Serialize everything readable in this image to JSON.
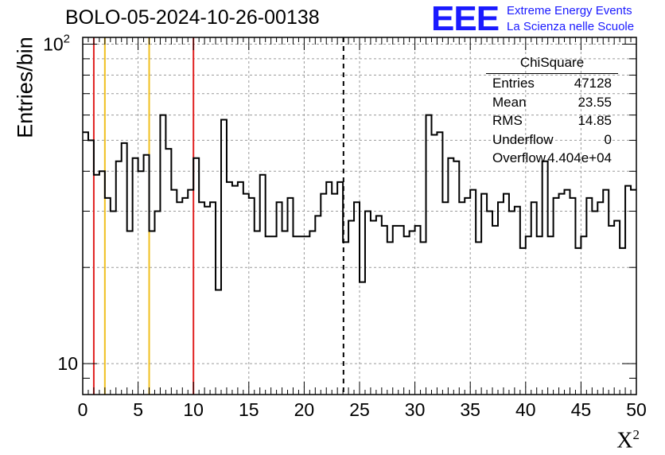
{
  "title": "BOLO-05-2024-10-26-00138",
  "logo": {
    "letters": "EEE",
    "line1": "Extreme Energy Events",
    "line2": "La Scienza nelle Scuole",
    "color": "#1a1aff"
  },
  "stats": {
    "name": "ChiSquare",
    "rows": [
      {
        "label": "Entries",
        "value": "47128"
      },
      {
        "label": "Mean",
        "value": "23.55"
      },
      {
        "label": "RMS",
        "value": "14.85"
      },
      {
        "label": "Underflow",
        "value": "0"
      },
      {
        "label": "Overflow",
        "value": "4.404e+04"
      }
    ]
  },
  "chart_data": {
    "type": "histogram",
    "title": "BOLO-05-2024-10-26-00138",
    "xlabel": "X",
    "xlabel_superscript": "2",
    "ylabel": "Entries/bin",
    "xlim": [
      0,
      50
    ],
    "ylim": [
      8,
      105
    ],
    "y_scale": "log",
    "grid": true,
    "bin_width": 0.5,
    "x_ticks": [
      "0",
      "5",
      "10",
      "15",
      "20",
      "25",
      "30",
      "35",
      "40",
      "45",
      "50"
    ],
    "y_ticks": [
      {
        "value": 10,
        "label": "10"
      },
      {
        "value": 100,
        "label": "10",
        "exponent": "2"
      }
    ],
    "values": [
      53,
      50,
      39,
      40,
      33,
      30,
      43,
      49,
      26,
      44,
      40,
      45,
      26,
      30,
      60,
      47,
      35,
      32,
      33,
      35,
      44,
      32,
      31,
      32,
      17,
      58,
      37,
      36,
      37,
      34,
      33,
      26,
      39,
      25,
      25,
      32,
      26,
      33,
      25,
      25,
      25,
      26,
      29,
      34,
      37,
      34,
      37,
      24,
      28,
      32,
      18,
      30,
      28,
      29,
      27,
      24,
      27,
      27,
      25,
      26,
      27,
      24,
      60,
      52,
      53,
      32,
      44,
      43,
      32,
      33,
      35,
      24,
      34,
      30,
      27,
      32,
      34,
      30,
      31,
      23,
      25,
      32,
      25,
      43,
      25,
      33,
      34,
      35,
      33,
      23,
      25,
      33,
      30,
      32,
      35,
      27,
      28,
      23,
      36,
      35
    ],
    "vlines": [
      {
        "x": 1,
        "color": "#e02020",
        "style": "solid"
      },
      {
        "x": 2,
        "color": "#f0c020",
        "style": "solid"
      },
      {
        "x": 6,
        "color": "#f0c020",
        "style": "solid"
      },
      {
        "x": 10,
        "color": "#e02020",
        "style": "solid"
      },
      {
        "x": 23.55,
        "color": "#000000",
        "style": "dashed"
      }
    ],
    "line_color": "#000000"
  }
}
